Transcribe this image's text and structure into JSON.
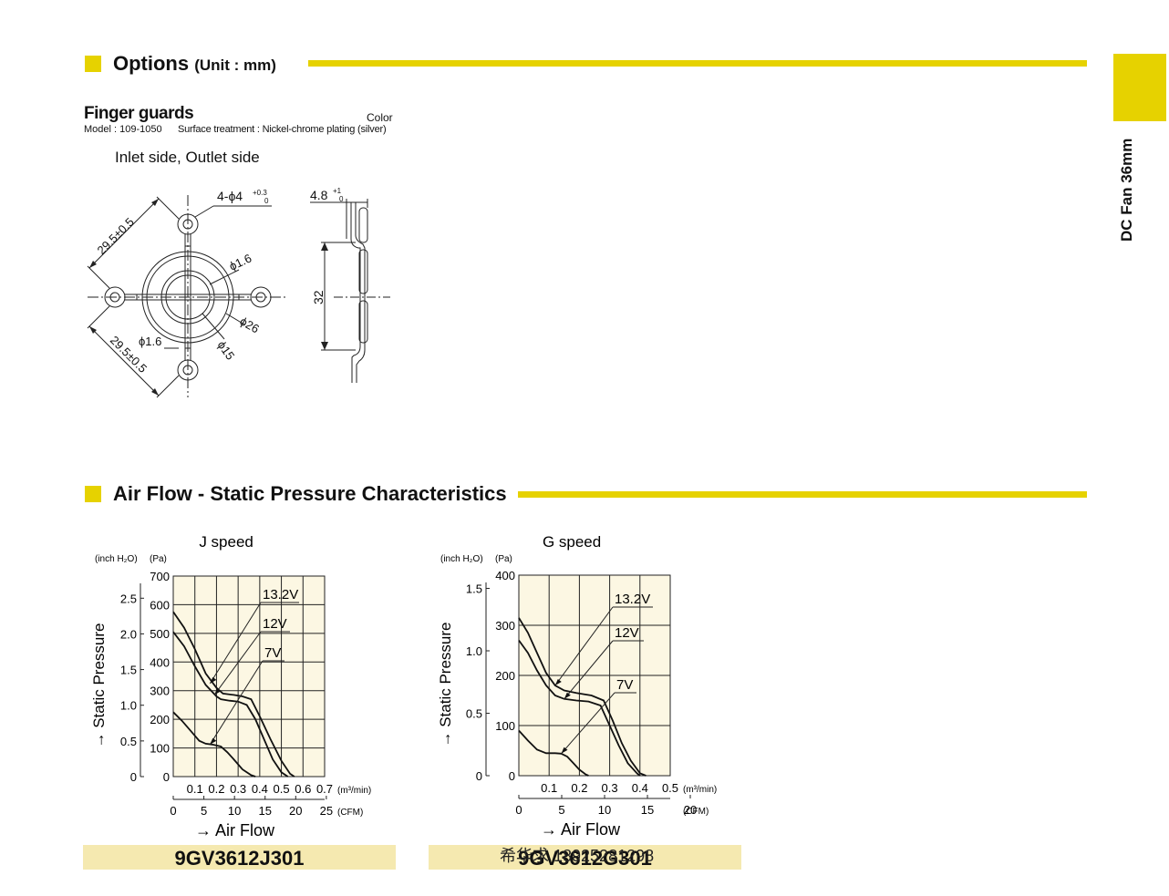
{
  "sections": {
    "options": {
      "title": "Options",
      "unit": "(Unit : mm)"
    },
    "airflow": {
      "title": "Air Flow - Static Pressure Characteristics"
    }
  },
  "side_tab": {
    "label": "DC Fan 36mm"
  },
  "finger_guards": {
    "heading": "Finger guards",
    "color_label": "Color",
    "model_line": "Model : 109-1050",
    "surface_line": "Surface treatment : Nickel-chrome plating (silver)",
    "side_label": "Inlet side, Outlet side"
  },
  "drawing": {
    "holes": "4-ϕ4",
    "holes_tol_upper": "+0.3",
    "holes_tol_lower": "0",
    "dim_diag_upper": "29.5±0.5",
    "dim_diag_lower": "29.5±0.5",
    "wire_dia_1": "ϕ1.6",
    "wire_dia_2": "ϕ1.6",
    "ring_outer": "ϕ26",
    "ring_inner": "ϕ15",
    "thickness": "4.8",
    "thickness_tol_upper": "+1",
    "thickness_tol_lower": "0",
    "height": "32"
  },
  "chart_data": [
    {
      "type": "line",
      "title": "J speed",
      "ylabel": "→ Static Pressure",
      "xlabel": "→ Air Flow",
      "y_unit_left": "(inch H₂O)",
      "y_unit_right": "(Pa)",
      "x_unit_top": "(m³/min)",
      "x_unit_bottom": "(CFM)",
      "ylim": [
        0,
        700
      ],
      "xlim_m3min": [
        0,
        0.7
      ],
      "pa_ticks": [
        "700",
        "600",
        "500",
        "400",
        "300",
        "200",
        "100",
        "0"
      ],
      "inch_ticks": [
        "2.5",
        "2.0",
        "1.5",
        "1.0",
        "0.5",
        "0"
      ],
      "inch_tick_pa": [
        622.7,
        498.2,
        373.6,
        249.1,
        124.5,
        0
      ],
      "m3_ticks": [
        "0.1",
        "0.2",
        "0.3",
        "0.4",
        "0.5",
        "0.6",
        "0.7"
      ],
      "cfm_ticks": [
        "0",
        "5",
        "10",
        "15",
        "20",
        "25"
      ],
      "cfm_tick_pos": [
        0,
        0.1416,
        0.2832,
        0.4248,
        0.5663,
        0.7079
      ],
      "series": [
        {
          "name": "13.2V",
          "x": [
            0,
            0.05,
            0.1,
            0.15,
            0.2,
            0.23,
            0.28,
            0.32,
            0.36,
            0.4,
            0.45,
            0.5,
            0.54,
            0.56
          ],
          "y": [
            575,
            520,
            445,
            360,
            310,
            290,
            285,
            280,
            270,
            210,
            130,
            55,
            10,
            0
          ]
        },
        {
          "name": "12V",
          "x": [
            0,
            0.05,
            0.1,
            0.15,
            0.2,
            0.22,
            0.26,
            0.3,
            0.34,
            0.38,
            0.42,
            0.46,
            0.5,
            0.53
          ],
          "y": [
            505,
            455,
            385,
            320,
            280,
            270,
            265,
            262,
            250,
            200,
            130,
            60,
            15,
            0
          ]
        },
        {
          "name": "7V",
          "x": [
            0,
            0.04,
            0.08,
            0.12,
            0.15,
            0.18,
            0.22,
            0.25,
            0.28,
            0.32,
            0.36,
            0.38
          ],
          "y": [
            225,
            195,
            160,
            125,
            115,
            112,
            105,
            85,
            60,
            25,
            5,
            0
          ]
        }
      ],
      "label_text": [
        "13.2V",
        "12V",
        "7V"
      ],
      "model": "9GV3612J301"
    },
    {
      "type": "line",
      "title": "G speed",
      "ylabel": "→ Static Pressure",
      "xlabel": "→ Air Flow",
      "y_unit_left": "(inch H₂O)",
      "y_unit_right": "(Pa)",
      "x_unit_top": "(m³/min)",
      "x_unit_bottom": "(CFM)",
      "ylim": [
        0,
        400
      ],
      "xlim_m3min": [
        0,
        0.5
      ],
      "pa_ticks": [
        "400",
        "300",
        "200",
        "100",
        "0"
      ],
      "inch_ticks": [
        "1.5",
        "1.0",
        "0.5",
        "0"
      ],
      "inch_tick_pa": [
        373.6,
        249.1,
        124.5,
        0
      ],
      "m3_ticks": [
        "0.1",
        "0.2",
        "0.3",
        "0.4",
        "0.5"
      ],
      "cfm_ticks": [
        "0",
        "5",
        "10",
        "15",
        "20"
      ],
      "cfm_tick_pos": [
        0,
        0.1416,
        0.2832,
        0.4248,
        0.5663
      ],
      "series": [
        {
          "name": "13.2V",
          "x": [
            0,
            0.03,
            0.06,
            0.09,
            0.12,
            0.15,
            0.19,
            0.24,
            0.28,
            0.31,
            0.34,
            0.37,
            0.4,
            0.42
          ],
          "y": [
            315,
            285,
            245,
            205,
            180,
            170,
            165,
            160,
            150,
            110,
            65,
            30,
            5,
            0
          ]
        },
        {
          "name": "12V",
          "x": [
            0,
            0.03,
            0.06,
            0.09,
            0.12,
            0.15,
            0.19,
            0.23,
            0.27,
            0.3,
            0.33,
            0.36,
            0.39,
            0.4
          ],
          "y": [
            270,
            245,
            210,
            180,
            160,
            153,
            150,
            148,
            140,
            100,
            60,
            25,
            5,
            0
          ]
        },
        {
          "name": "7V",
          "x": [
            0,
            0.03,
            0.06,
            0.09,
            0.12,
            0.14,
            0.16,
            0.18,
            0.2,
            0.22,
            0.23
          ],
          "y": [
            90,
            70,
            52,
            45,
            45,
            44,
            38,
            25,
            12,
            3,
            0
          ]
        }
      ],
      "label_text": [
        "13.2V",
        "12V",
        "7V"
      ],
      "model": "9GV3612G301"
    }
  ],
  "watermark": "希华求 18925281298",
  "colors": {
    "accent": "#e6d200",
    "plot_bg": "#fcf7e3",
    "band": "#f5e9b0"
  }
}
